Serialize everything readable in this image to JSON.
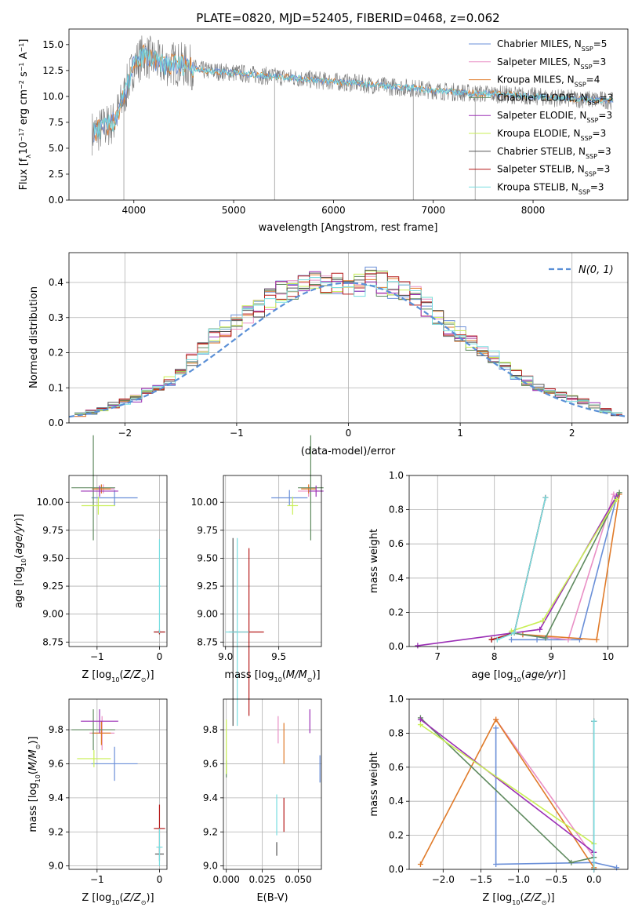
{
  "colors": {
    "Chabrier MILES": "#6a8fd8",
    "Salpeter MILES": "#e98fc5",
    "Kroupa MILES": "#e07b2a",
    "Chabrier ELODIE": "#5f8a5f",
    "Salpeter ELODIE": "#9b2fb5",
    "Kroupa ELODIE": "#c9ef55",
    "Chabrier STELIB": "#555555",
    "Salpeter STELIB": "#b51a1a",
    "Kroupa STELIB": "#77dde0",
    "gaussian": "#5a8fd6"
  },
  "chart_data": [
    {
      "id": "spectrum",
      "type": "line",
      "title": "PLATE=0820, MJD=52405, FIBERID=0468, z=0.062",
      "xlabel": "wavelength [Angstrom, rest frame]",
      "ylabel": "Flux [f_λ10^-17 erg cm^-2 s^-1 A^-1]",
      "xlim": [
        3350,
        8950
      ],
      "ylim": [
        0,
        16.5
      ],
      "xticks": [
        4000,
        5000,
        6000,
        7000,
        8000
      ],
      "yticks": [
        0.0,
        2.5,
        5.0,
        7.5,
        10.0,
        12.5,
        15.0
      ],
      "x": [
        3600,
        3700,
        3800,
        3900,
        4000,
        4100,
        4200,
        4300,
        4400,
        4500,
        4700,
        5000,
        5300,
        5600,
        5900,
        6200,
        6500,
        6800,
        7100,
        7400,
        7700,
        8000,
        8300,
        8600,
        8800
      ],
      "y": [
        6.5,
        7.0,
        7.5,
        10.0,
        13.0,
        14.0,
        13.5,
        13.0,
        13.2,
        13.0,
        12.5,
        12.3,
        12.0,
        11.8,
        11.5,
        11.3,
        11.0,
        10.8,
        10.5,
        10.3,
        10.2,
        10.0,
        9.8,
        9.7,
        9.6
      ],
      "legend": [
        {
          "name": "Chabrier MILES",
          "label": "Chabrier MILES, N",
          "sub": "SSP",
          "tail": "=5"
        },
        {
          "name": "Salpeter MILES",
          "label": "Salpeter MILES, N",
          "sub": "SSP",
          "tail": "=3"
        },
        {
          "name": "Kroupa MILES",
          "label": "Kroupa MILES, N",
          "sub": "SSP",
          "tail": "=4"
        },
        {
          "name": "Chabrier ELODIE",
          "label": "Chabrier ELODIE, N",
          "sub": "SSP",
          "tail": "=3"
        },
        {
          "name": "Salpeter ELODIE",
          "label": "Salpeter ELODIE, N",
          "sub": "SSP",
          "tail": "=3"
        },
        {
          "name": "Kroupa ELODIE",
          "label": "Kroupa ELODIE, N",
          "sub": "SSP",
          "tail": "=3"
        },
        {
          "name": "Chabrier STELIB",
          "label": "Chabrier STELIB, N",
          "sub": "SSP",
          "tail": "=3"
        },
        {
          "name": "Salpeter STELIB",
          "label": "Salpeter STELIB, N",
          "sub": "SSP",
          "tail": "=3"
        },
        {
          "name": "Kroupa STELIB",
          "label": "Kroupa STELIB, N",
          "sub": "SSP",
          "tail": "=3"
        }
      ]
    },
    {
      "id": "residuals",
      "type": "line",
      "xlabel": "(data-model)/error",
      "ylabel": "Normed distribution",
      "xlim": [
        -2.5,
        2.5
      ],
      "ylim": [
        0,
        0.485
      ],
      "xticks": [
        -2,
        -1,
        0,
        1,
        2
      ],
      "yticks": [
        0.0,
        0.1,
        0.2,
        0.3,
        0.4
      ],
      "grid": true,
      "legend": "N(0, 1)",
      "legend_placement": "top-right",
      "hist_centers": [
        -2.4,
        -2.3,
        -2.2,
        -2.1,
        -2.0,
        -1.9,
        -1.8,
        -1.7,
        -1.6,
        -1.5,
        -1.4,
        -1.3,
        -1.2,
        -1.1,
        -1.0,
        -0.9,
        -0.8,
        -0.7,
        -0.6,
        -0.5,
        -0.4,
        -0.3,
        -0.2,
        -0.1,
        0.0,
        0.1,
        0.2,
        0.3,
        0.4,
        0.5,
        0.6,
        0.7,
        0.8,
        0.9,
        1.0,
        1.1,
        1.2,
        1.3,
        1.4,
        1.5,
        1.6,
        1.7,
        1.8,
        1.9,
        2.0,
        2.1,
        2.2,
        2.3,
        2.4
      ],
      "hist_values": [
        0.025,
        0.03,
        0.04,
        0.05,
        0.06,
        0.07,
        0.09,
        0.1,
        0.12,
        0.15,
        0.18,
        0.21,
        0.25,
        0.27,
        0.29,
        0.31,
        0.33,
        0.35,
        0.37,
        0.38,
        0.39,
        0.4,
        0.4,
        0.39,
        0.4,
        0.39,
        0.41,
        0.4,
        0.39,
        0.38,
        0.36,
        0.33,
        0.3,
        0.27,
        0.25,
        0.23,
        0.21,
        0.19,
        0.16,
        0.14,
        0.12,
        0.1,
        0.09,
        0.08,
        0.07,
        0.06,
        0.05,
        0.035,
        0.025
      ]
    },
    {
      "id": "age-vs-Z",
      "type": "scatter",
      "xlabel": "Z [log10(Z/Z⊙)]",
      "ylabel": "age  [log10(age/yr)]",
      "xlim": [
        -1.45,
        0.12
      ],
      "ylim": [
        8.71,
        10.24
      ],
      "xticks": [
        -1,
        0
      ],
      "yticks": [
        8.75,
        9.0,
        9.25,
        9.5,
        9.75,
        10.0
      ],
      "points": [
        {
          "s": "Chabrier MILES",
          "x": -0.72,
          "y": 10.04,
          "xerr": 0.37,
          "yerr": 0.07
        },
        {
          "s": "Salpeter MILES",
          "x": -0.9,
          "y": 10.12,
          "xerr": 0.18,
          "yerr": 0.04
        },
        {
          "s": "Kroupa MILES",
          "x": -0.93,
          "y": 10.12,
          "xerr": 0.15,
          "yerr": 0.04
        },
        {
          "s": "Chabrier ELODIE",
          "x": -1.06,
          "y": 10.13,
          "xerr": 0.35,
          "yerr": 0.47
        },
        {
          "s": "Salpeter ELODIE",
          "x": -0.96,
          "y": 10.1,
          "xerr": 0.3,
          "yerr": 0.05
        },
        {
          "s": "Kroupa ELODIE",
          "x": -0.98,
          "y": 9.97,
          "xerr": 0.27,
          "yerr": 0.08
        },
        {
          "s": "Chabrier STELIB",
          "x": 0.0,
          "y": 8.84,
          "xerr": 0.09,
          "yerr": 0.02
        },
        {
          "s": "Salpeter STELIB",
          "x": 0.0,
          "y": 8.84,
          "xerr": 0.09,
          "yerr": 0.02
        },
        {
          "s": "Kroupa STELIB",
          "x": 0.0,
          "y": 9.25,
          "xerr": 0.02,
          "yerr": 0.42
        }
      ]
    },
    {
      "id": "age-vs-mass",
      "type": "scatter",
      "xlabel": "mass [log10(M/M⊙)]",
      "ylabel": "",
      "xlim": [
        8.98,
        9.9
      ],
      "ylim": [
        8.71,
        10.24
      ],
      "xticks": [
        9.0,
        9.5
      ],
      "yticks": [
        8.75,
        9.0,
        9.25,
        9.5,
        9.75,
        10.0
      ],
      "points": [
        {
          "s": "Chabrier MILES",
          "x": 9.6,
          "y": 10.04,
          "xerr": 0.17,
          "yerr": 0.07
        },
        {
          "s": "Salpeter MILES",
          "x": 9.78,
          "y": 10.1,
          "xerr": 0.1,
          "yerr": 0.05
        },
        {
          "s": "Kroupa MILES",
          "x": 9.78,
          "y": 10.12,
          "xerr": 0.07,
          "yerr": 0.04
        },
        {
          "s": "Chabrier ELODIE",
          "x": 9.8,
          "y": 10.13,
          "xerr": 0.12,
          "yerr": 0.47
        },
        {
          "s": "Salpeter ELODIE",
          "x": 9.85,
          "y": 10.1,
          "xerr": 0.07,
          "yerr": 0.05
        },
        {
          "s": "Kroupa ELODIE",
          "x": 9.63,
          "y": 9.97,
          "xerr": 0.05,
          "yerr": 0.08
        },
        {
          "s": "Chabrier STELIB",
          "x": 9.07,
          "y": 8.84,
          "xerr": 0.04,
          "yerr": 0.84
        },
        {
          "s": "Salpeter STELIB",
          "x": 9.22,
          "y": 8.84,
          "xerr": 0.14,
          "yerr": 0.75
        },
        {
          "s": "Kroupa STELIB",
          "x": 9.11,
          "y": 8.84,
          "xerr": 0.11,
          "yerr": 0.84
        }
      ]
    },
    {
      "id": "weight-vs-age",
      "type": "line",
      "xlabel": "age  [log10(age/yr)]",
      "ylabel": "mass weight",
      "xlim": [
        6.5,
        10.35
      ],
      "ylim": [
        0,
        1.0
      ],
      "xticks": [
        7,
        8,
        9,
        10
      ],
      "yticks": [
        0.0,
        0.2,
        0.4,
        0.6,
        0.8,
        1.0
      ],
      "grid": true,
      "series": [
        {
          "s": "Chabrier MILES",
          "x": [
            8.3,
            8.75,
            9.5,
            10.15
          ],
          "y": [
            0.04,
            0.04,
            0.04,
            0.87
          ]
        },
        {
          "s": "Salpeter MILES",
          "x": [
            8.5,
            9.3,
            10.1
          ],
          "y": [
            0.07,
            0.04,
            0.89
          ]
        },
        {
          "s": "Kroupa MILES",
          "x": [
            8.5,
            9.8,
            10.2
          ],
          "y": [
            0.07,
            0.04,
            0.89
          ]
        },
        {
          "s": "Chabrier ELODIE",
          "x": [
            8.3,
            8.9,
            10.2
          ],
          "y": [
            0.08,
            0.05,
            0.9
          ]
        },
        {
          "s": "Salpeter ELODIE",
          "x": [
            6.65,
            8.8,
            10.15
          ],
          "y": [
            0.005,
            0.1,
            0.88
          ]
        },
        {
          "s": "Kroupa ELODIE",
          "x": [
            8.3,
            8.85,
            10.15
          ],
          "y": [
            0.09,
            0.15,
            0.86
          ]
        },
        {
          "s": "Chabrier STELIB",
          "x": [
            7.95,
            8.35,
            8.9
          ],
          "y": [
            0.04,
            0.08,
            0.87
          ]
        },
        {
          "s": "Salpeter STELIB",
          "x": [
            7.95,
            8.35,
            8.9
          ],
          "y": [
            0.04,
            0.08,
            0.87
          ]
        },
        {
          "s": "Kroupa STELIB",
          "x": [
            8.05,
            8.35,
            8.9
          ],
          "y": [
            0.04,
            0.08,
            0.87
          ]
        }
      ]
    },
    {
      "id": "mass-vs-Z",
      "type": "scatter",
      "xlabel": "Z [log10(Z/Z⊙)]",
      "ylabel": "mass [log10(M/M⊙)]",
      "xlim": [
        -1.45,
        0.12
      ],
      "ylim": [
        8.98,
        9.98
      ],
      "xticks": [
        -1,
        0
      ],
      "yticks": [
        9.0,
        9.2,
        9.4,
        9.6,
        9.8
      ],
      "points": [
        {
          "s": "Chabrier MILES",
          "x": -0.72,
          "y": 9.6,
          "xerr": 0.37,
          "yerr": 0.1
        },
        {
          "s": "Salpeter MILES",
          "x": -0.92,
          "y": 9.78,
          "xerr": 0.2,
          "yerr": 0.1
        },
        {
          "s": "Kroupa MILES",
          "x": -0.93,
          "y": 9.78,
          "xerr": 0.15,
          "yerr": 0.07
        },
        {
          "s": "Chabrier ELODIE",
          "x": -1.06,
          "y": 9.8,
          "xerr": 0.35,
          "yerr": 0.12
        },
        {
          "s": "Salpeter ELODIE",
          "x": -0.96,
          "y": 9.85,
          "xerr": 0.3,
          "yerr": 0.07
        },
        {
          "s": "Kroupa ELODIE",
          "x": -1.05,
          "y": 9.63,
          "xerr": 0.27,
          "yerr": 0.05
        },
        {
          "s": "Chabrier STELIB",
          "x": 0.0,
          "y": 9.07,
          "xerr": 0.07,
          "yerr": 0.04
        },
        {
          "s": "Salpeter STELIB",
          "x": 0.0,
          "y": 9.22,
          "xerr": 0.09,
          "yerr": 0.14
        },
        {
          "s": "Kroupa STELIB",
          "x": 0.0,
          "y": 9.11,
          "xerr": 0.05,
          "yerr": 0.11
        }
      ]
    },
    {
      "id": "mass-vs-EBV",
      "type": "scatter",
      "xlabel": "E(B-V)",
      "ylabel": "",
      "xlim": [
        -0.002,
        0.066
      ],
      "ylim": [
        8.98,
        9.98
      ],
      "xticks": [
        0.0,
        0.025,
        0.05
      ],
      "yticks": [
        9.0,
        9.2,
        9.4,
        9.6,
        9.8
      ],
      "points": [
        {
          "s": "Chabrier MILES",
          "x": 0.065,
          "y": 9.57,
          "xerr": 0,
          "yerr": 0.08
        },
        {
          "s": "Salpeter MILES",
          "x": 0.036,
          "y": 9.8,
          "xerr": 0,
          "yerr": 0.08
        },
        {
          "s": "Kroupa MILES",
          "x": 0.04,
          "y": 9.72,
          "xerr": 0,
          "yerr": 0.12
        },
        {
          "s": "Chabrier ELODIE",
          "x": 0.0,
          "y": 9.57,
          "xerr": 0,
          "yerr": 0.05
        },
        {
          "s": "Salpeter ELODIE",
          "x": 0.058,
          "y": 9.85,
          "xerr": 0,
          "yerr": 0.07
        },
        {
          "s": "Kroupa ELODIE",
          "x": 0.0,
          "y": 9.7,
          "xerr": 0,
          "yerr": 0.16
        },
        {
          "s": "Chabrier STELIB",
          "x": 0.035,
          "y": 9.1,
          "xerr": 0,
          "yerr": 0.04
        },
        {
          "s": "Salpeter STELIB",
          "x": 0.04,
          "y": 9.3,
          "xerr": 0,
          "yerr": 0.1
        },
        {
          "s": "Kroupa STELIB",
          "x": 0.035,
          "y": 9.3,
          "xerr": 0,
          "yerr": 0.12
        }
      ]
    },
    {
      "id": "weight-vs-Z",
      "type": "line",
      "xlabel": "Z [log10(Z/Z⊙)]",
      "ylabel": "mass weight",
      "xlim": [
        -2.45,
        0.45
      ],
      "ylim": [
        0,
        1.0
      ],
      "xticks": [
        -2.0,
        -1.5,
        -1.0,
        -0.5,
        0.0
      ],
      "yticks": [
        0.0,
        0.2,
        0.4,
        0.6,
        0.8,
        1.0
      ],
      "grid": true,
      "series": [
        {
          "s": "Chabrier MILES",
          "x": [
            -1.3,
            -1.3,
            0.0,
            0.3
          ],
          "y": [
            0.83,
            0.03,
            0.04,
            0.01
          ]
        },
        {
          "s": "Salpeter MILES",
          "x": [
            -1.3,
            -0.0
          ],
          "y": [
            0.88,
            0.07
          ]
        },
        {
          "s": "Kroupa MILES",
          "x": [
            -2.3,
            -1.3,
            0.0
          ],
          "y": [
            0.03,
            0.88,
            0.01
          ]
        },
        {
          "s": "Chabrier ELODIE",
          "x": [
            -2.3,
            -0.3,
            0.0
          ],
          "y": [
            0.89,
            0.04,
            0.07
          ]
        },
        {
          "s": "Salpeter ELODIE",
          "x": [
            -2.3,
            0.0
          ],
          "y": [
            0.88,
            0.1
          ]
        },
        {
          "s": "Kroupa ELODIE",
          "x": [
            -2.3,
            0.0
          ],
          "y": [
            0.85,
            0.15
          ]
        },
        {
          "s": "Chabrier STELIB",
          "x": [
            0.0,
            0.0
          ],
          "y": [
            0.87,
            0.0
          ]
        },
        {
          "s": "Salpeter STELIB",
          "x": [
            0.0,
            0.0
          ],
          "y": [
            0.87,
            0.0
          ]
        },
        {
          "s": "Kroupa STELIB",
          "x": [
            0.0,
            0.0
          ],
          "y": [
            0.87,
            0.0
          ]
        }
      ]
    }
  ]
}
